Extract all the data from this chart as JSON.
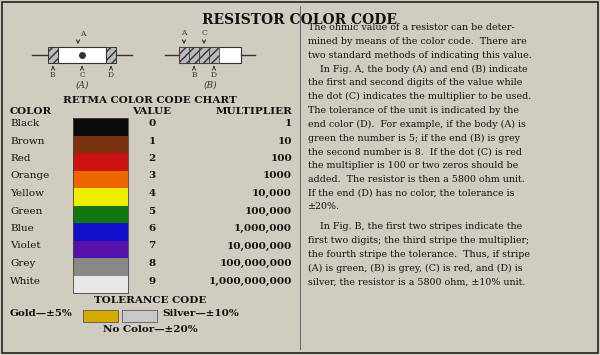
{
  "title": "RESISTOR COLOR CODE",
  "bg_color": "#d0ccbf",
  "border_color": "#222222",
  "chart_title": "RETMA COLOR CODE CHART",
  "col_headers": [
    "COLOR",
    "VALUE",
    "MULTIPLIER"
  ],
  "colors": [
    {
      "name": "Black",
      "hex": "#0a0a0a",
      "value": "0",
      "multiplier": "1"
    },
    {
      "name": "Brown",
      "hex": "#7B3210",
      "value": "1",
      "multiplier": "10"
    },
    {
      "name": "Red",
      "hex": "#CC1111",
      "value": "2",
      "multiplier": "100"
    },
    {
      "name": "Orange",
      "hex": "#EE6600",
      "value": "3",
      "multiplier": "1000"
    },
    {
      "name": "Yellow",
      "hex": "#EEEE00",
      "value": "4",
      "multiplier": "10,000"
    },
    {
      "name": "Green",
      "hex": "#117711",
      "value": "5",
      "multiplier": "100,000"
    },
    {
      "name": "Blue",
      "hex": "#1111CC",
      "value": "6",
      "multiplier": "1,000,000"
    },
    {
      "name": "Violet",
      "hex": "#5511AA",
      "value": "7",
      "multiplier": "10,000,000"
    },
    {
      "name": "Grey",
      "hex": "#888888",
      "value": "8",
      "multiplier": "100,000,000"
    },
    {
      "name": "White",
      "hex": "#E8E8E8",
      "value": "9",
      "multiplier": "1,000,000,000"
    }
  ],
  "tolerance_title": "TOLERANCE CODE",
  "gold_hex": "#D4AA00",
  "silver_hex": "#C8C8C8",
  "tolerance_gold": "Gold—±5%",
  "tolerance_silver": "Silver—±10%",
  "tolerance_nocolor": "No Color—±20%",
  "paragraph1_lines": [
    "The ohmic value of a resistor can be deter-",
    "mined by means of the color code.  There are",
    "two standard methods of indicating this value.",
    "    In Fig. A, the body (A) and end (B) indicate",
    "the first and second digits of the value while",
    "the dot (C) indicates the multiplier to be used.",
    "The tolerance of the unit is indicated by the",
    "end color (D).  For example, if the body (A) is",
    "green the number is 5; if the end (B) is grey",
    "the second number is 8.  If the dot (C) is red",
    "the multiplier is 100 or two zeros should be",
    "added.  The resistor is then a 5800 ohm unit.",
    "If the end (D) has no color, the tolerance is",
    "±20%."
  ],
  "paragraph2_lines": [
    "    In Fig. B, the first two stripes indicate the",
    "first two digits; the third stripe the multiplier;",
    "the fourth stripe the tolerance.  Thus, if stripe",
    "(A) is green, (B) is grey, (C) is red, and (D) is",
    "silver, the resistor is a 5800 ohm, ±10% unit."
  ]
}
